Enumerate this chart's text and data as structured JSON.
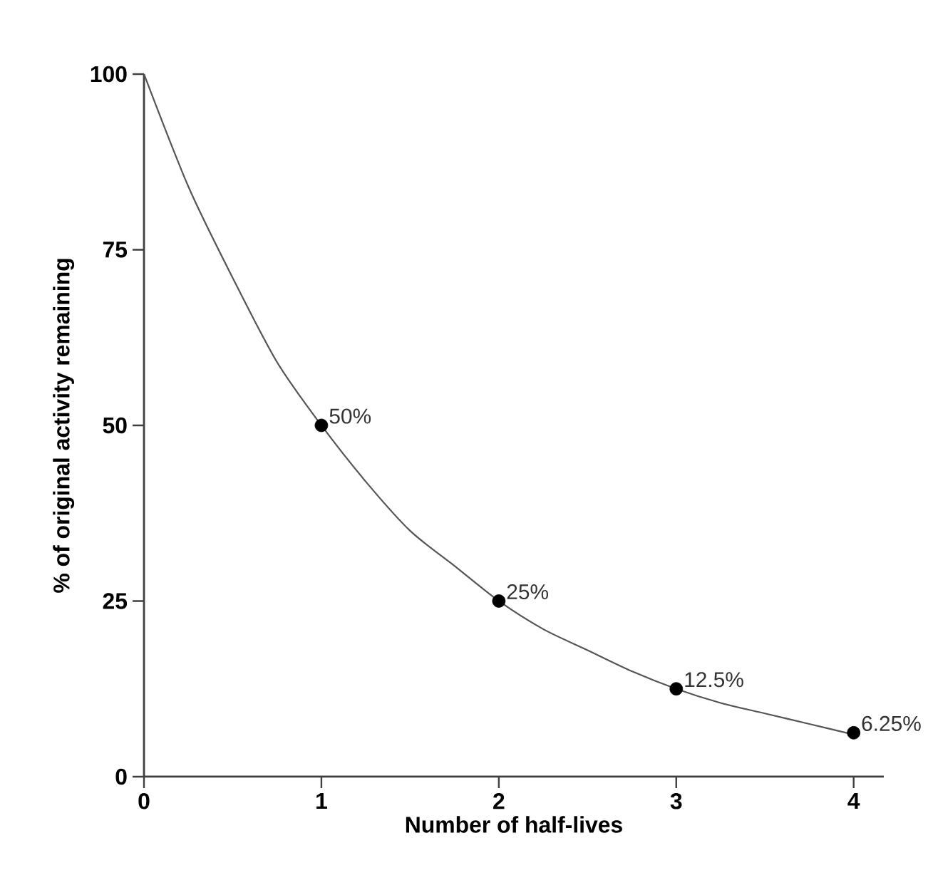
{
  "chart_data": {
    "type": "line",
    "xlabel": "Number of half-lives",
    "ylabel": "% of original activity remaining",
    "xlim": [
      0,
      4.17
    ],
    "ylim": [
      0,
      100
    ],
    "xticks": [
      0,
      1,
      2,
      3,
      4
    ],
    "yticks": [
      0,
      25,
      50,
      75,
      100
    ],
    "grid": false,
    "series": [
      {
        "type": "line",
        "color": "#555555",
        "x": [
          0,
          0.25,
          0.5,
          0.75,
          1,
          1.25,
          1.5,
          1.75,
          2,
          2.25,
          2.5,
          2.75,
          3,
          3.25,
          3.5,
          3.75,
          4
        ],
        "values": [
          100,
          84,
          71,
          59,
          50,
          42,
          35,
          30,
          25,
          21,
          18,
          15,
          12.5,
          10.5,
          9,
          7.5,
          6
        ]
      },
      {
        "type": "scatter",
        "color": "#000000",
        "marker": "circle",
        "x": [
          1,
          2,
          3,
          4
        ],
        "values": [
          50,
          25,
          12.5,
          6.25
        ],
        "value_labels": [
          "50%",
          "25%",
          "12.5%",
          "6.25%"
        ]
      }
    ]
  }
}
